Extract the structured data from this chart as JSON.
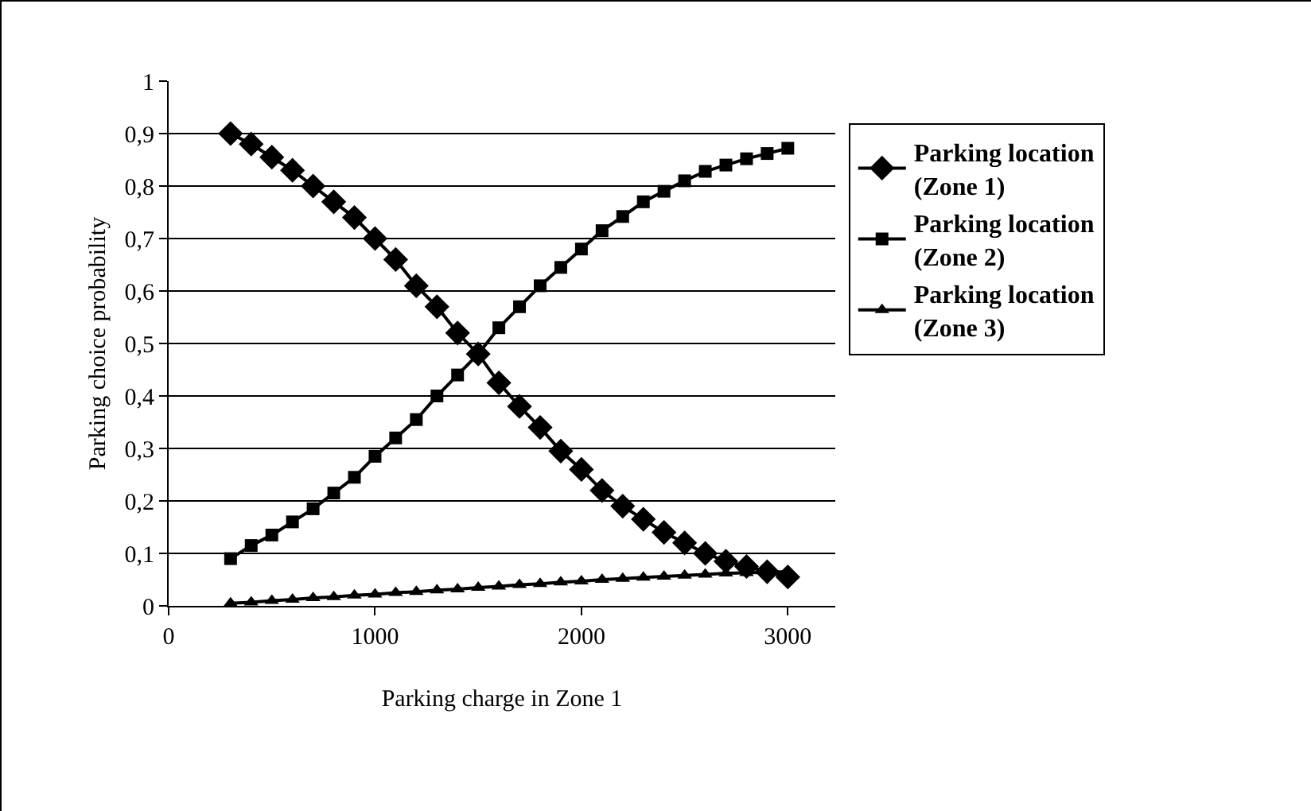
{
  "chart_data": {
    "type": "line",
    "xlabel": "Parking charge in Zone 1",
    "ylabel": "Parking choice probability",
    "x": [
      300,
      400,
      500,
      600,
      700,
      800,
      900,
      1000,
      1100,
      1200,
      1300,
      1400,
      1500,
      1600,
      1700,
      1800,
      1900,
      2000,
      2100,
      2200,
      2300,
      2400,
      2500,
      2600,
      2700,
      2800,
      2900,
      3000
    ],
    "series": [
      {
        "name": "Parking location (Zone 1)",
        "color": "#000000",
        "marker": "diamond",
        "values": [
          0.9,
          0.88,
          0.855,
          0.83,
          0.8,
          0.77,
          0.74,
          0.7,
          0.66,
          0.61,
          0.57,
          0.52,
          0.48,
          0.425,
          0.38,
          0.34,
          0.295,
          0.26,
          0.22,
          0.19,
          0.165,
          0.14,
          0.12,
          0.1,
          0.085,
          0.075,
          0.065,
          0.055
        ]
      },
      {
        "name": "Parking location (Zone 2)",
        "color": "#000000",
        "marker": "square",
        "values": [
          0.09,
          0.115,
          0.135,
          0.16,
          0.185,
          0.215,
          0.245,
          0.285,
          0.32,
          0.355,
          0.4,
          0.44,
          0.48,
          0.53,
          0.57,
          0.61,
          0.645,
          0.68,
          0.715,
          0.742,
          0.77,
          0.79,
          0.81,
          0.828,
          0.84,
          0.852,
          0.862,
          0.872
        ]
      },
      {
        "name": "Parking location (Zone 3)",
        "color": "#000000",
        "marker": "triangle",
        "values": [
          0.005,
          0.007,
          0.01,
          0.012,
          0.015,
          0.017,
          0.02,
          0.022,
          0.025,
          0.027,
          0.03,
          0.032,
          0.035,
          0.037,
          0.04,
          0.042,
          0.045,
          0.047,
          0.05,
          0.052,
          0.054,
          0.056,
          0.058,
          0.06,
          0.062,
          0.063,
          0.064,
          0.065
        ]
      }
    ],
    "xlim": [
      0,
      3230
    ],
    "xticks": [
      0,
      1000,
      2000,
      3000
    ],
    "ylim": [
      0,
      1
    ],
    "yticks": [
      0,
      {
        "value": 0.1,
        "label": "0,1"
      },
      {
        "value": 0.2,
        "label": "0,2"
      },
      {
        "value": 0.3,
        "label": "0,3"
      },
      {
        "value": 0.4,
        "label": "0,4"
      },
      {
        "value": 0.5,
        "label": "0,5"
      },
      {
        "value": 0.6,
        "label": "0,6"
      },
      {
        "value": 0.7,
        "label": "0,7"
      },
      {
        "value": 0.8,
        "label": "0,8"
      },
      {
        "value": 0.9,
        "label": "0,9"
      },
      1
    ],
    "grid": "y",
    "legend": "right",
    "line_style": "solid"
  }
}
